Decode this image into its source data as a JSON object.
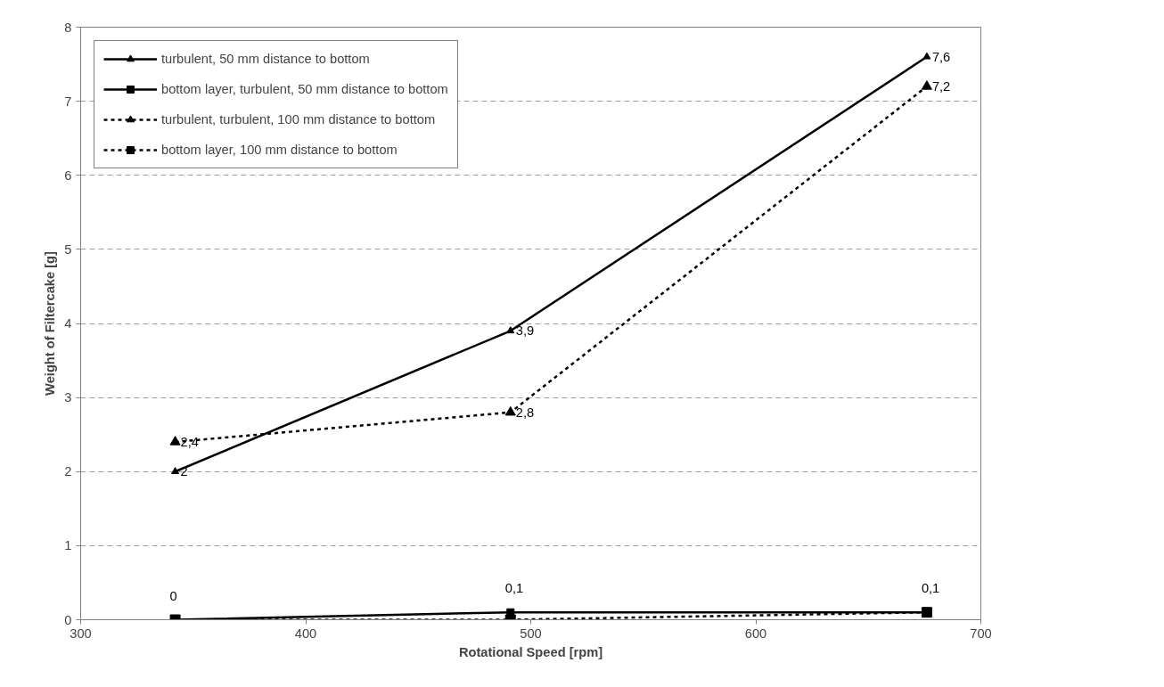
{
  "chart_data": {
    "type": "line",
    "xlabel": "Rotational Speed [rpm]",
    "ylabel": "Weight of Filtercake [g]",
    "x": [
      342,
      491,
      676
    ],
    "xlim": [
      300,
      700
    ],
    "xticks": [
      300,
      400,
      500,
      600,
      700
    ],
    "ylim": [
      0,
      8
    ],
    "yticks": [
      0,
      1,
      2,
      3,
      4,
      5,
      6,
      7,
      8
    ],
    "grid": "y",
    "legend": "top left",
    "series": [
      {
        "name": "turbulent, 50 mm distance to bottom",
        "color": "#000000",
        "marker": "triangle",
        "line_style": "solid",
        "values": [
          2,
          3.9,
          7.6
        ],
        "value_labels": [
          "2",
          "3,9",
          "7,6"
        ]
      },
      {
        "name": "bottom layer, turbulent, 50 mm distance to bottom",
        "color": "#000000",
        "marker": "square",
        "line_style": "solid",
        "values": [
          0,
          0.1,
          0.1
        ],
        "value_labels": [
          "0",
          "0,1",
          "0,1"
        ]
      },
      {
        "name": "turbulent, turbulent, 100 mm distance to bottom",
        "color": "#000000",
        "marker": "triangle",
        "line_style": "dashed",
        "values": [
          2.4,
          2.8,
          7.2
        ],
        "value_labels": [
          "2,4",
          "2,8",
          "7,2"
        ]
      },
      {
        "name": "bottom layer, 100 mm distance to bottom",
        "color": "#000000",
        "marker": "square",
        "line_style": "dashed",
        "values": [
          0,
          0,
          0.1
        ]
      }
    ]
  }
}
